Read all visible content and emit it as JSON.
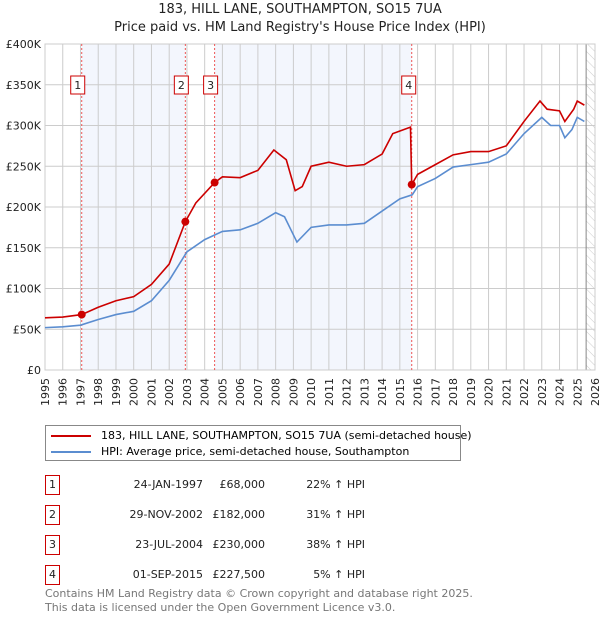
{
  "chart_data": {
    "type": "line",
    "title": "183, HILL LANE, SOUTHAMPTON, SO15 7UA",
    "subtitle": "Price paid vs. HM Land Registry's House Price Index (HPI)",
    "xlim": [
      1995,
      2026
    ],
    "ylim": [
      0,
      400000
    ],
    "x_ticks": [
      "1995",
      "1996",
      "1997",
      "1998",
      "1999",
      "2000",
      "2001",
      "2002",
      "2003",
      "2004",
      "2005",
      "2006",
      "2007",
      "2008",
      "2009",
      "2010",
      "2011",
      "2012",
      "2013",
      "2014",
      "2015",
      "2016",
      "2017",
      "2018",
      "2019",
      "2020",
      "2021",
      "2022",
      "2023",
      "2024",
      "2025",
      "2026"
    ],
    "y_ticks": [
      {
        "v": 0,
        "label": "£0"
      },
      {
        "v": 50000,
        "label": "£50K"
      },
      {
        "v": 100000,
        "label": "£100K"
      },
      {
        "v": 150000,
        "label": "£150K"
      },
      {
        "v": 200000,
        "label": "£200K"
      },
      {
        "v": 250000,
        "label": "£250K"
      },
      {
        "v": 300000,
        "label": "£300K"
      },
      {
        "v": 350000,
        "label": "£350K"
      },
      {
        "v": 400000,
        "label": "£400K"
      }
    ],
    "grid": true,
    "series": [
      {
        "name": "183, HILL LANE, SOUTHAMPTON, SO15 7UA (semi-detached house)",
        "color": "#cc0000",
        "x": [
          1995,
          1996,
          1997.07,
          1998,
          1999,
          2000,
          2001,
          2002,
          2002.91,
          2003.5,
          2004.56,
          2005,
          2006,
          2007,
          2007.9,
          2008.6,
          2009.1,
          2009.5,
          2010,
          2011,
          2012,
          2013,
          2014,
          2014.6,
          2015.6,
          2015.67,
          2016,
          2017,
          2018,
          2019,
          2020,
          2021,
          2022,
          2022.9,
          2023.3,
          2024,
          2024.3,
          2024.8,
          2025,
          2025.4
        ],
        "y": [
          64000,
          65000,
          68000,
          77000,
          85000,
          90000,
          105000,
          130000,
          182000,
          205000,
          230000,
          237000,
          236000,
          245000,
          270000,
          258000,
          220000,
          225000,
          250000,
          255000,
          250000,
          252000,
          265000,
          290000,
          298000,
          227500,
          240000,
          252000,
          264000,
          268000,
          268000,
          275000,
          305000,
          330000,
          320000,
          318000,
          305000,
          320000,
          330000,
          325000
        ]
      },
      {
        "name": "HPI: Average price, semi-detached house, Southampton",
        "color": "#5b8dd0",
        "x": [
          1995,
          1996,
          1997,
          1998,
          1999,
          2000,
          2001,
          2002,
          2003,
          2004,
          2005,
          2006,
          2007,
          2008,
          2008.5,
          2009.2,
          2010,
          2011,
          2012,
          2013,
          2014,
          2015,
          2015.7,
          2016,
          2017,
          2018,
          2019,
          2020,
          2021,
          2022,
          2023,
          2023.5,
          2024,
          2024.3,
          2024.7,
          2025,
          2025.4
        ],
        "y": [
          52000,
          53000,
          55000,
          62000,
          68000,
          72000,
          85000,
          110000,
          145000,
          160000,
          170000,
          172000,
          180000,
          193000,
          188000,
          157000,
          175000,
          178000,
          178000,
          180000,
          195000,
          210000,
          215000,
          225000,
          235000,
          249000,
          252000,
          255000,
          265000,
          290000,
          310000,
          300000,
          300000,
          285000,
          295000,
          310000,
          305000
        ]
      }
    ],
    "sales": [
      {
        "n": "1",
        "x": 1997.07,
        "price": 68000,
        "date": "24-JAN-1997",
        "price_label": "£68,000",
        "hpi": "22% ↑ HPI"
      },
      {
        "n": "2",
        "x": 2002.91,
        "price": 182000,
        "date": "29-NOV-2002",
        "price_label": "£182,000",
        "hpi": "31% ↑ HPI"
      },
      {
        "n": "3",
        "x": 2004.56,
        "price": 230000,
        "date": "23-JUL-2004",
        "price_label": "£230,000",
        "hpi": "38% ↑ HPI"
      },
      {
        "n": "4",
        "x": 2015.67,
        "price": 227500,
        "date": "01-SEP-2015",
        "price_label": "£227,500",
        "hpi": "5% ↑ HPI"
      }
    ],
    "shaded_ranges": [
      [
        1997.07,
        2002.91
      ],
      [
        2004.56,
        2015.67
      ]
    ],
    "forecast_from": 2025.5
  },
  "legend": {
    "property": "183, HILL LANE, SOUTHAMPTON, SO15 7UA (semi-detached house)",
    "hpi": "HPI: Average price, semi-detached house, Southampton"
  },
  "footer": {
    "line1": "Contains HM Land Registry data © Crown copyright and database right 2025.",
    "line2": "This data is licensed under the Open Government Licence v3.0."
  }
}
